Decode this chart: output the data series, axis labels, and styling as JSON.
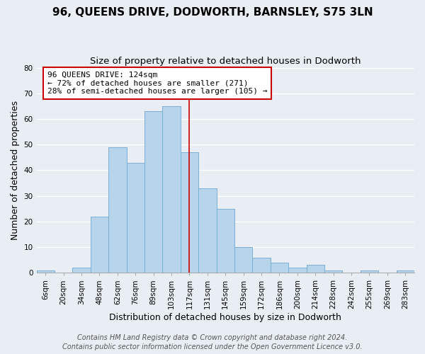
{
  "title": "96, QUEENS DRIVE, DODWORTH, BARNSLEY, S75 3LN",
  "subtitle": "Size of property relative to detached houses in Dodworth",
  "xlabel": "Distribution of detached houses by size in Dodworth",
  "ylabel": "Number of detached properties",
  "footer_line1": "Contains HM Land Registry data © Crown copyright and database right 2024.",
  "footer_line2": "Contains public sector information licensed under the Open Government Licence v3.0.",
  "bar_labels": [
    "6sqm",
    "20sqm",
    "34sqm",
    "48sqm",
    "62sqm",
    "76sqm",
    "89sqm",
    "103sqm",
    "117sqm",
    "131sqm",
    "145sqm",
    "159sqm",
    "172sqm",
    "186sqm",
    "200sqm",
    "214sqm",
    "228sqm",
    "242sqm",
    "255sqm",
    "269sqm",
    "283sqm"
  ],
  "bar_values": [
    1,
    0,
    2,
    22,
    49,
    43,
    63,
    65,
    47,
    33,
    25,
    10,
    6,
    4,
    2,
    3,
    1,
    0,
    1,
    0,
    1
  ],
  "bar_color": "#b8d4ea",
  "bar_edge_color": "#7aafd4",
  "marker_line_color": "#cc0000",
  "annotation_line1": "96 QUEENS DRIVE: 124sqm",
  "annotation_line2": "← 72% of detached houses are smaller (271)",
  "annotation_line3": "28% of semi-detached houses are larger (105) →",
  "annotation_box_color": "#ffffff",
  "annotation_box_edge": "#cc0000",
  "ylim": [
    0,
    80
  ],
  "yticks": [
    0,
    10,
    20,
    30,
    40,
    50,
    60,
    70,
    80
  ],
  "background_color": "#e8eef4",
  "grid_color": "#ffffff",
  "title_fontsize": 11,
  "subtitle_fontsize": 9.5,
  "axis_label_fontsize": 9,
  "tick_fontsize": 7.5,
  "annotation_fontsize": 8,
  "footer_fontsize": 7
}
